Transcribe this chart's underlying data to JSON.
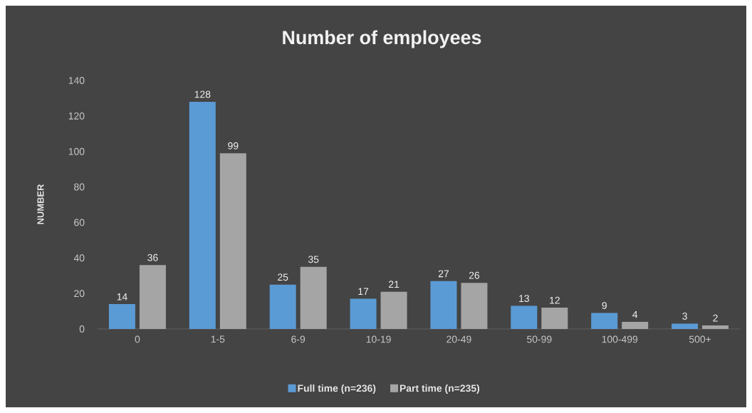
{
  "chart_data": {
    "type": "bar",
    "title": "Number of employees",
    "ylabel": "NUMBER",
    "categories": [
      "0",
      "1-5",
      "6-9",
      "10-19",
      "20-49",
      "50-99",
      "100-499",
      "500+"
    ],
    "series": [
      {
        "name": "Full time (n=236)",
        "color": "#5b9bd5",
        "values": [
          14,
          128,
          25,
          17,
          27,
          13,
          9,
          3
        ]
      },
      {
        "name": "Part time (n=235)",
        "color": "#a5a5a5",
        "values": [
          36,
          99,
          35,
          21,
          26,
          12,
          4,
          2
        ]
      }
    ],
    "ylim": [
      0,
      140
    ],
    "yticks": [
      0,
      20,
      40,
      60,
      80,
      100,
      120,
      140
    ],
    "data_labels": true,
    "legend": "bottom"
  }
}
